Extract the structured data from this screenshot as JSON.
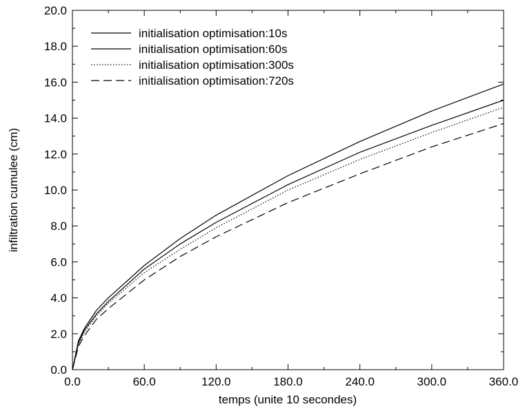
{
  "chart_data": {
    "type": "line",
    "xlabel": "temps (unite 10 secondes)",
    "ylabel": "infiltration cumulee (cm)",
    "xlim": [
      0,
      360
    ],
    "ylim": [
      0,
      20
    ],
    "x_ticks": [
      "0.0",
      "60.0",
      "120.0",
      "180.0",
      "240.0",
      "300.0",
      "360.0"
    ],
    "y_ticks": [
      "0.0",
      "2.0",
      "4.0",
      "6.0",
      "8.0",
      "10.0",
      "12.0",
      "14.0",
      "16.0",
      "18.0",
      "20.0"
    ],
    "grid": false,
    "legend_position": "top-left",
    "x": [
      0,
      5,
      10,
      20,
      30,
      60,
      90,
      120,
      180,
      240,
      300,
      360
    ],
    "series": [
      {
        "name": "initialisation optimisation:10s",
        "line_style": "solid",
        "values": [
          0,
          1.6,
          2.3,
          3.3,
          4.0,
          5.8,
          7.3,
          8.6,
          10.8,
          12.7,
          14.4,
          15.9
        ]
      },
      {
        "name": "initialisation optimisation:60s",
        "line_style": "solid",
        "values": [
          0,
          1.5,
          2.2,
          3.1,
          3.8,
          5.6,
          7.0,
          8.2,
          10.3,
          12.1,
          13.6,
          15.0
        ]
      },
      {
        "name": "initialisation optimisation:300s",
        "line_style": "dotted",
        "values": [
          0,
          1.4,
          2.1,
          3.0,
          3.7,
          5.4,
          6.7,
          7.9,
          10.0,
          11.7,
          13.2,
          14.6
        ]
      },
      {
        "name": "initialisation optimisation:720s",
        "line_style": "dashed",
        "values": [
          0,
          1.3,
          1.9,
          2.8,
          3.4,
          5.0,
          6.3,
          7.4,
          9.3,
          10.9,
          12.4,
          13.7
        ]
      }
    ]
  }
}
